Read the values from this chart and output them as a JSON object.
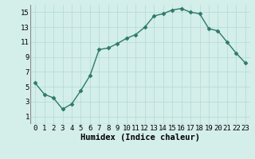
{
  "x": [
    0,
    1,
    2,
    3,
    4,
    5,
    6,
    7,
    8,
    9,
    10,
    11,
    12,
    13,
    14,
    15,
    16,
    17,
    18,
    19,
    20,
    21,
    22,
    23
  ],
  "y": [
    5.5,
    4.0,
    3.5,
    2.0,
    2.7,
    4.5,
    6.5,
    10.0,
    10.2,
    10.8,
    11.5,
    12.0,
    13.0,
    14.5,
    14.8,
    15.3,
    15.5,
    15.0,
    14.8,
    12.8,
    12.5,
    11.0,
    9.5,
    8.2
  ],
  "line_color": "#2d7a6a",
  "marker": "D",
  "marker_size": 2.5,
  "bg_color": "#d4eeea",
  "grid_color": "#b8ddd7",
  "xlabel": "Humidex (Indice chaleur)",
  "xlabel_fontsize": 7.5,
  "ylim": [
    0,
    16
  ],
  "xlim": [
    -0.5,
    23.5
  ],
  "yticks": [
    1,
    3,
    5,
    7,
    9,
    11,
    13,
    15
  ],
  "xtick_labels": [
    "0",
    "1",
    "2",
    "3",
    "4",
    "5",
    "6",
    "7",
    "8",
    "9",
    "10",
    "11",
    "12",
    "13",
    "14",
    "15",
    "16",
    "17",
    "18",
    "19",
    "20",
    "21",
    "22",
    "23"
  ],
  "tick_fontsize": 6.5
}
